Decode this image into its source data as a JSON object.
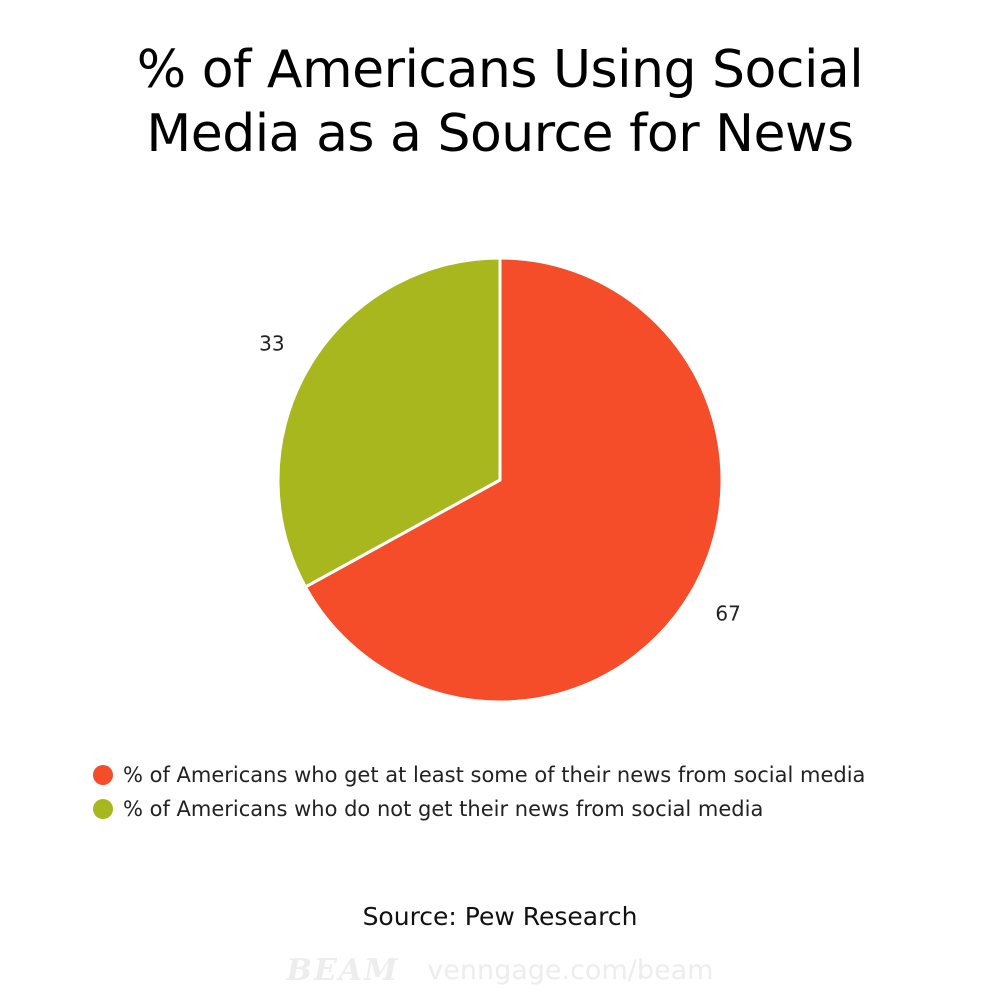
{
  "chart_data": {
    "type": "pie",
    "title_lines": [
      "% of Americans Using Social",
      "Media as a Source for News"
    ],
    "slices": [
      {
        "label": "% of Americans who get at least some of their news from social media",
        "value": 67,
        "value_label": "67",
        "color": "#f54c29"
      },
      {
        "label": "% of Americans who do not get their news from social media",
        "value": 33,
        "value_label": "33",
        "color": "#a8b71d"
      }
    ],
    "start_angle": "top",
    "direction": "clockwise",
    "legend_position": "bottom"
  },
  "source": "Source: Pew Research",
  "footer": {
    "logo_text": "BEAM",
    "url": "venngage.com/beam"
  }
}
